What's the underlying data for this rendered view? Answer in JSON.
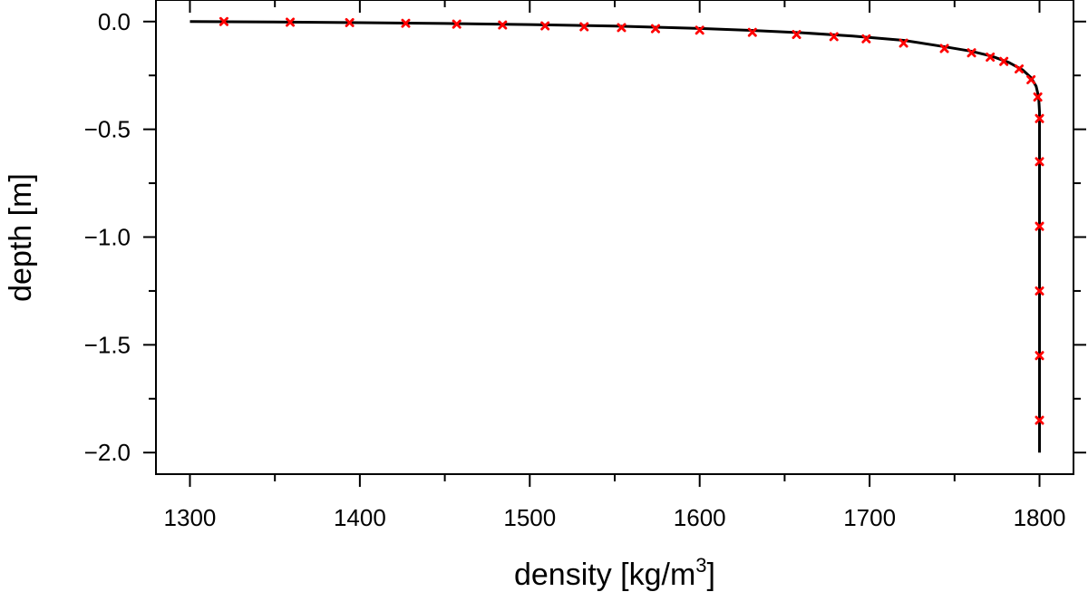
{
  "chart_data": {
    "type": "line",
    "xlabel": "density [kg/m",
    "xlabel_superscript": "3",
    "xlabel_suffix": "]",
    "ylabel": "depth [m]",
    "xlim": [
      1280,
      1820
    ],
    "ylim": [
      -2.1,
      0.1
    ],
    "x_ticks": [
      1300,
      1400,
      1500,
      1600,
      1700,
      1800
    ],
    "x_tick_labels": [
      "1300",
      "1400",
      "1500",
      "1600",
      "1700",
      "1800"
    ],
    "x_minor_ticks": [
      1350,
      1450,
      1550,
      1650,
      1750
    ],
    "y_ticks": [
      0.0,
      -0.5,
      -1.0,
      -1.5,
      -2.0
    ],
    "y_tick_labels": [
      "0.0",
      "−0.5",
      "−1.0",
      "−1.5",
      "−2.0"
    ],
    "y_minor_ticks": [
      -0.25,
      -0.75,
      -1.25,
      -1.75
    ],
    "grid": false,
    "series": [
      {
        "style": "line",
        "color": "#000000",
        "points": [
          [
            1300,
            0.0
          ],
          [
            1350,
            -0.002
          ],
          [
            1400,
            -0.005
          ],
          [
            1450,
            -0.009
          ],
          [
            1500,
            -0.014
          ],
          [
            1550,
            -0.021
          ],
          [
            1600,
            -0.032
          ],
          [
            1630,
            -0.041
          ],
          [
            1660,
            -0.052
          ],
          [
            1690,
            -0.067
          ],
          [
            1720,
            -0.087
          ],
          [
            1745,
            -0.118
          ],
          [
            1760,
            -0.138
          ],
          [
            1772,
            -0.161
          ],
          [
            1782,
            -0.19
          ],
          [
            1790,
            -0.224
          ],
          [
            1795,
            -0.26
          ],
          [
            1798,
            -0.3
          ],
          [
            1799.5,
            -0.35
          ],
          [
            1800,
            -0.42
          ],
          [
            1800,
            -0.6
          ],
          [
            1800,
            -1.0
          ],
          [
            1800,
            -1.5
          ],
          [
            1800,
            -2.0
          ]
        ]
      },
      {
        "style": "markers",
        "marker": "x",
        "color": "#ff0000",
        "points": [
          [
            1320,
            0.0
          ],
          [
            1359,
            -0.003
          ],
          [
            1394,
            -0.005
          ],
          [
            1427,
            -0.008
          ],
          [
            1457,
            -0.012
          ],
          [
            1484,
            -0.016
          ],
          [
            1509,
            -0.02
          ],
          [
            1532,
            -0.024
          ],
          [
            1554,
            -0.028
          ],
          [
            1574,
            -0.033
          ],
          [
            1600,
            -0.04
          ],
          [
            1631,
            -0.05
          ],
          [
            1657,
            -0.06
          ],
          [
            1679,
            -0.07
          ],
          [
            1698,
            -0.08
          ],
          [
            1720,
            -0.1
          ],
          [
            1744,
            -0.125
          ],
          [
            1760,
            -0.145
          ],
          [
            1771,
            -0.165
          ],
          [
            1779,
            -0.185
          ],
          [
            1788,
            -0.22
          ],
          [
            1795,
            -0.27
          ],
          [
            1799,
            -0.35
          ],
          [
            1800,
            -0.45
          ],
          [
            1800,
            -0.65
          ],
          [
            1800,
            -0.95
          ],
          [
            1800,
            -1.25
          ],
          [
            1800,
            -1.55
          ],
          [
            1800,
            -1.85
          ]
        ]
      }
    ]
  }
}
